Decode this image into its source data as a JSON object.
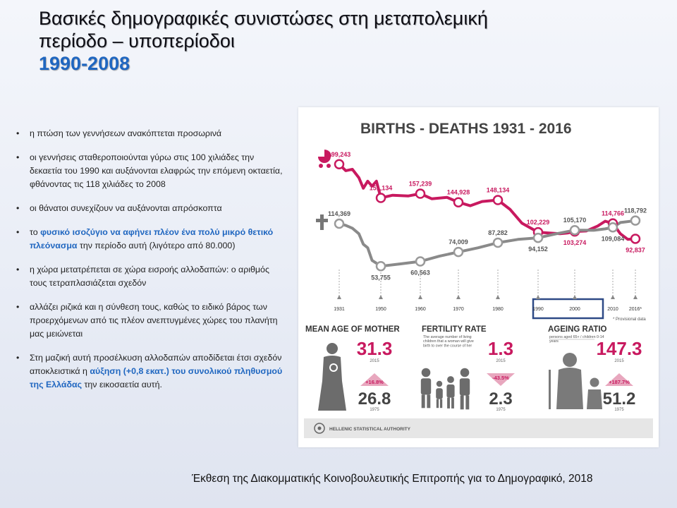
{
  "slide": {
    "title_line1": "Βασικές δημογραφικές συνιστώσες στη μεταπολεμική",
    "title_line2": "περίοδο – υποπερίοδοι",
    "title_years": "1990-2008",
    "footer": "Έκθεση της Διακομματικής Κοινοβουλευτικής Επιτροπής για το Δημογραφικό, 2018"
  },
  "bullets": [
    {
      "parts": [
        {
          "t": "η πτώση των γεννήσεων ανακόπτεται προσωρινά",
          "hl": false
        }
      ]
    },
    {
      "parts": [
        {
          "t": "οι γεννήσεις σταθεροποιούνται γύρω στις 100 χιλιάδες την δεκαετία του 1990 και αυξάνονται ελαφρώς την επόμενη οκταετία, φθάνοντας τις 118 χιλιάδες το 2008",
          "hl": false
        }
      ]
    },
    {
      "parts": [
        {
          "t": "οι θάνατοι συνεχίζουν να αυξάνονται απρόσκοπτα",
          "hl": false
        }
      ]
    },
    {
      "parts": [
        {
          "t": "το ",
          "hl": false
        },
        {
          "t": "φυσικό ισοζύγιο να αφήνει πλέον ένα πολύ μικρό θετικό πλεόνασμα",
          "hl": true
        },
        {
          "t": " την περίοδο αυτή (λιγότερο από 80.000)",
          "hl": false
        }
      ]
    },
    {
      "parts": [
        {
          "t": "η χώρα μετατρέπεται σε χώρα εισροής αλλοδαπών: ο αριθμός τους τετραπλασιάζεται σχεδόν",
          "hl": false
        }
      ]
    },
    {
      "parts": [
        {
          "t": "αλλάζει ριζικά και η σύνθεση τους, καθώς το ειδικό βάρος των προερχόμενων από τις πλέον ανεπτυγμένες χώρες του πλανήτη μας μειώνεται",
          "hl": false
        }
      ]
    },
    {
      "parts": [
        {
          "t": "Στη μαζική αυτή προσέλκυση αλλοδαπών αποδίδεται έτσι σχεδόν αποκλειστικά η ",
          "hl": false
        },
        {
          "t": "αύξηση (+0,8 εκατ.) του συνολικού πληθυσμού της Ελλάδας",
          "hl": true
        },
        {
          "t": " την εικοσαετία αυτή.",
          "hl": false
        }
      ]
    }
  ],
  "infographic": {
    "title": "BIRTHS - DEATHS 1931 - 2016",
    "note": "* Provisional data",
    "highlight_years": [
      1990,
      2000
    ],
    "colors": {
      "births": "#c8195f",
      "deaths": "#8a8a8a",
      "accent": "#c8195f",
      "highlight": "#2e4a86",
      "dark": "#333333"
    },
    "stats": [
      {
        "title": "MEAN AGE OF MOTHER",
        "subtitle": "",
        "now": "31.3",
        "now_year": "2015",
        "change": "+16.8%",
        "change_dir": "up",
        "then": "26.8",
        "then_year": "1975"
      },
      {
        "title": "FERTILITY RATE",
        "subtitle": "The average number of living children that a woman will give birth to over the course of her lifetime.",
        "now": "1.3",
        "now_year": "2015",
        "change": "-43.5%",
        "change_dir": "down",
        "then": "2.3",
        "then_year": "1975"
      },
      {
        "title": "AGEING RATIO",
        "subtitle": "persons aged 65+ / children 0-14 years",
        "now": "147.3",
        "now_year": "2015",
        "change": "+187.7%",
        "change_dir": "up",
        "then": "51.2",
        "then_year": "1975"
      }
    ],
    "authority": "HELLENIC STATISTICAL AUTHORITY"
  },
  "chart_data": {
    "type": "line",
    "title": "BIRTHS - DEATHS 1931 - 2016",
    "x_ticks": [
      "1931",
      "1950",
      "1960",
      "1970",
      "1980",
      "1990",
      "2000",
      "2010",
      "2016*"
    ],
    "series": [
      {
        "name": "births",
        "points": [
          [
            1931,
            199243
          ],
          [
            1934,
            190000
          ],
          [
            1937,
            192000
          ],
          [
            1940,
            180000
          ],
          [
            1942,
            165000
          ],
          [
            1944,
            175000
          ],
          [
            1946,
            168000
          ],
          [
            1948,
            175000
          ],
          [
            1950,
            151134
          ],
          [
            1953,
            155000
          ],
          [
            1957,
            154000
          ],
          [
            1960,
            157239
          ],
          [
            1963,
            150000
          ],
          [
            1967,
            152000
          ],
          [
            1970,
            144928
          ],
          [
            1973,
            140000
          ],
          [
            1976,
            146000
          ],
          [
            1980,
            148134
          ],
          [
            1983,
            135000
          ],
          [
            1986,
            115000
          ],
          [
            1990,
            102229
          ],
          [
            1993,
            101000
          ],
          [
            1996,
            100000
          ],
          [
            1998,
            101000
          ],
          [
            2000,
            103274
          ],
          [
            2003,
            104000
          ],
          [
            2006,
            111000
          ],
          [
            2008,
            118000
          ],
          [
            2010,
            114766
          ],
          [
            2012,
            100000
          ],
          [
            2014,
            92000
          ],
          [
            2016,
            92837
          ]
        ]
      },
      {
        "name": "deaths",
        "points": [
          [
            1931,
            114369
          ],
          [
            1934,
            112000
          ],
          [
            1937,
            108000
          ],
          [
            1940,
            100000
          ],
          [
            1942,
            85000
          ],
          [
            1944,
            80000
          ],
          [
            1946,
            62000
          ],
          [
            1948,
            58000
          ],
          [
            1950,
            53755
          ],
          [
            1955,
            57000
          ],
          [
            1960,
            60563
          ],
          [
            1965,
            68000
          ],
          [
            1970,
            74009
          ],
          [
            1975,
            80000
          ],
          [
            1980,
            87282
          ],
          [
            1985,
            92000
          ],
          [
            1990,
            94152
          ],
          [
            1995,
            100000
          ],
          [
            2000,
            105170
          ],
          [
            2005,
            105000
          ],
          [
            2008,
            107000
          ],
          [
            2010,
            109084
          ],
          [
            2012,
            116000
          ],
          [
            2016,
            118792
          ]
        ]
      }
    ],
    "labels": [
      {
        "series": "births",
        "year": 1931,
        "text": "199,243"
      },
      {
        "series": "births",
        "year": 1950,
        "text": "151,134"
      },
      {
        "series": "births",
        "year": 1960,
        "text": "157,239"
      },
      {
        "series": "births",
        "year": 1970,
        "text": "144,928"
      },
      {
        "series": "births",
        "year": 1980,
        "text": "148,134"
      },
      {
        "series": "births",
        "year": 1990,
        "text": "102,229"
      },
      {
        "series": "births",
        "year": 2000,
        "text": "103,274"
      },
      {
        "series": "births",
        "year": 2010,
        "text": "114,766"
      },
      {
        "series": "births",
        "year": 2016,
        "text": "92,837"
      },
      {
        "series": "deaths",
        "year": 1931,
        "text": "114,369"
      },
      {
        "series": "deaths",
        "year": 1950,
        "text": "53,755"
      },
      {
        "series": "deaths",
        "year": 1960,
        "text": "60,563"
      },
      {
        "series": "deaths",
        "year": 1970,
        "text": "74,009"
      },
      {
        "series": "deaths",
        "year": 1980,
        "text": "87,282"
      },
      {
        "series": "deaths",
        "year": 1990,
        "text": "94,152"
      },
      {
        "series": "deaths",
        "year": 2000,
        "text": "105,170"
      },
      {
        "series": "deaths",
        "year": 2010,
        "text": "109,084"
      },
      {
        "series": "deaths",
        "year": 2016,
        "text": "118,792"
      }
    ]
  }
}
